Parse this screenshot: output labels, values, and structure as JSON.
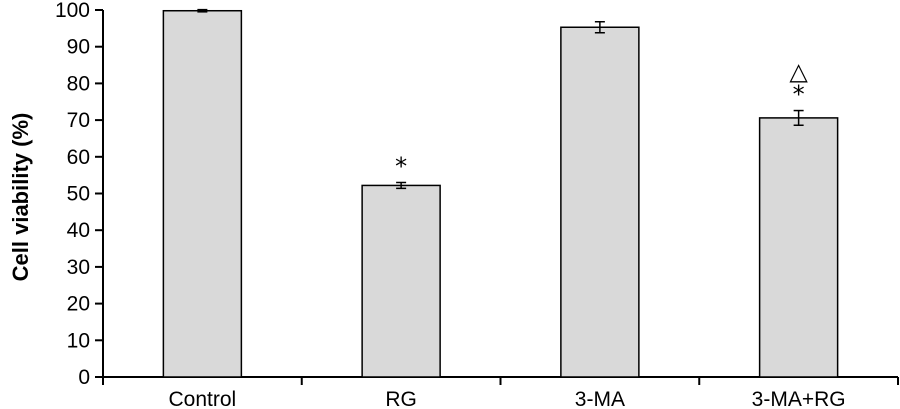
{
  "chart_data": {
    "type": "bar",
    "title": "",
    "xlabel": "",
    "ylabel": "Cell viability (%)",
    "ylim": [
      0,
      100
    ],
    "yticks": [
      0,
      10,
      20,
      30,
      40,
      50,
      60,
      70,
      80,
      90,
      100
    ],
    "grid": false,
    "legend": "none",
    "bar_color": "#d9d9d9",
    "bar_edge_color": "#000000",
    "categories": [
      "Control",
      "RG",
      "3-MA",
      "3-MA+RG"
    ],
    "values": [
      99.8,
      52.2,
      95.3,
      70.6
    ],
    "errors": [
      0.3,
      0.8,
      1.5,
      2.0
    ],
    "annotations": [
      [],
      [
        "*"
      ],
      [],
      [
        "*",
        "△"
      ]
    ]
  }
}
